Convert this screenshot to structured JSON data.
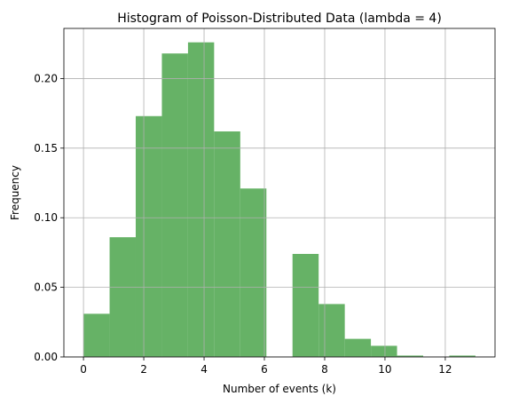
{
  "chart_data": {
    "type": "bar",
    "title": "Histogram of Poisson-Distributed Data (lambda = 4)",
    "xlabel": "Number of events (k)",
    "ylabel": "Frequency",
    "xlim": [
      -0.65,
      13.65
    ],
    "ylim": [
      0,
      0.236
    ],
    "xticks": [
      0,
      2,
      4,
      6,
      8,
      10,
      12
    ],
    "yticks": [
      0.0,
      0.05,
      0.1,
      0.15,
      0.2
    ],
    "ytick_labels": [
      "0.00",
      "0.05",
      "0.10",
      "0.15",
      "0.20"
    ],
    "grid": true,
    "bar_color": "#66b266",
    "bins": [
      {
        "x0": 0.0,
        "x1": 0.867,
        "value": 0.031
      },
      {
        "x0": 0.867,
        "x1": 1.733,
        "value": 0.086
      },
      {
        "x0": 1.733,
        "x1": 2.6,
        "value": 0.173
      },
      {
        "x0": 2.6,
        "x1": 3.467,
        "value": 0.218
      },
      {
        "x0": 3.467,
        "x1": 4.333,
        "value": 0.226
      },
      {
        "x0": 4.333,
        "x1": 5.2,
        "value": 0.162
      },
      {
        "x0": 5.2,
        "x1": 6.067,
        "value": 0.121
      },
      {
        "x0": 6.067,
        "x1": 6.933,
        "value": 0.0
      },
      {
        "x0": 6.933,
        "x1": 7.8,
        "value": 0.074
      },
      {
        "x0": 7.8,
        "x1": 8.667,
        "value": 0.038
      },
      {
        "x0": 8.667,
        "x1": 9.533,
        "value": 0.013
      },
      {
        "x0": 9.533,
        "x1": 10.4,
        "value": 0.008
      },
      {
        "x0": 10.4,
        "x1": 11.267,
        "value": 0.001
      },
      {
        "x0": 11.267,
        "x1": 12.133,
        "value": 0.0
      },
      {
        "x0": 12.133,
        "x1": 13.0,
        "value": 0.001
      }
    ]
  }
}
